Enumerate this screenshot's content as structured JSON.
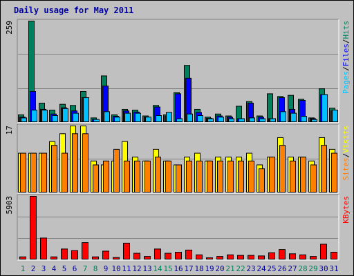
{
  "title": "Daily usage for May 2011",
  "colors": {
    "hits": "#00805c",
    "files": "#0000ff",
    "pages": "#00c0ff",
    "visits": "#ffff00",
    "sites": "#ff8000",
    "kbytes": "#ff0000",
    "weekend_day_label": "#00805c",
    "weekday_label": "#0000a0",
    "background": "#c0c0c0"
  },
  "chart_data": [
    {
      "type": "bar",
      "panel": "hits-files-pages",
      "axis_max_label": "259",
      "ylim": [
        0,
        259
      ],
      "side_label": [
        "Pages",
        "/",
        "Files",
        "/",
        "Hits"
      ],
      "categories": [
        "1",
        "2",
        "3",
        "4",
        "5",
        "6",
        "7",
        "8",
        "9",
        "10",
        "11",
        "12",
        "13",
        "14",
        "15",
        "16",
        "17",
        "18",
        "19",
        "20",
        "21",
        "22",
        "23",
        "24",
        "25",
        "26",
        "27",
        "28",
        "29",
        "30",
        "31"
      ],
      "series": [
        {
          "name": "Hits",
          "values": [
            18,
            259,
            48,
            30,
            45,
            42,
            78,
            10,
            118,
            18,
            32,
            30,
            15,
            42,
            18,
            75,
            145,
            32,
            12,
            20,
            15,
            40,
            52,
            15,
            72,
            65,
            68,
            58,
            10,
            85,
            35
          ]
        },
        {
          "name": "Files",
          "values": [
            12,
            78,
            32,
            20,
            36,
            28,
            62,
            6,
            92,
            14,
            28,
            25,
            12,
            38,
            15,
            72,
            112,
            24,
            9,
            15,
            12,
            8,
            48,
            12,
            8,
            62,
            32,
            55,
            8,
            70,
            28
          ]
        },
        {
          "name": "Pages",
          "values": [
            10,
            30,
            30,
            16,
            34,
            22,
            62,
            6,
            26,
            12,
            22,
            22,
            12,
            16,
            24,
            8,
            20,
            16,
            8,
            12,
            8,
            8,
            10,
            8,
            8,
            26,
            22,
            14,
            6,
            70,
            30
          ]
        }
      ]
    },
    {
      "type": "bar",
      "panel": "sites-visits",
      "axis_max_label": "17",
      "ylim": [
        0,
        17
      ],
      "side_label": [
        "Sites",
        "/",
        "Visits"
      ],
      "categories": [
        "1",
        "2",
        "3",
        "4",
        "5",
        "6",
        "7",
        "8",
        "9",
        "10",
        "11",
        "12",
        "13",
        "14",
        "15",
        "16",
        "17",
        "18",
        "19",
        "20",
        "21",
        "22",
        "23",
        "24",
        "25",
        "26",
        "27",
        "28",
        "29",
        "30",
        "31"
      ],
      "series": [
        {
          "name": "Visits",
          "values": [
            10,
            10,
            10,
            13,
            15,
            17,
            17,
            8,
            7,
            8,
            13,
            9,
            8,
            11,
            8,
            7,
            9,
            10,
            8,
            9,
            9,
            9,
            10,
            7,
            9,
            14,
            9,
            9,
            8,
            14,
            11
          ]
        },
        {
          "name": "Sites",
          "values": [
            10,
            10,
            10,
            12,
            10,
            15,
            15,
            7,
            8,
            11,
            8,
            8,
            8,
            9,
            8,
            7,
            8,
            8,
            8,
            8,
            8,
            8,
            8,
            6,
            9,
            12,
            8,
            9,
            7,
            12,
            10
          ]
        }
      ]
    },
    {
      "type": "bar",
      "panel": "kbytes",
      "axis_max_label": "5903",
      "ylim": [
        0,
        5903
      ],
      "side_label": [
        "KBytes"
      ],
      "categories": [
        "1",
        "2",
        "3",
        "4",
        "5",
        "6",
        "7",
        "8",
        "9",
        "10",
        "11",
        "12",
        "13",
        "14",
        "15",
        "16",
        "17",
        "18",
        "19",
        "20",
        "21",
        "22",
        "23",
        "24",
        "25",
        "26",
        "27",
        "28",
        "29",
        "30",
        "31"
      ],
      "series": [
        {
          "name": "KBytes",
          "values": [
            210,
            5903,
            1980,
            210,
            950,
            800,
            1550,
            210,
            750,
            150,
            1500,
            550,
            250,
            950,
            550,
            650,
            850,
            400,
            120,
            250,
            400,
            350,
            350,
            300,
            600,
            900,
            500,
            400,
            250,
            1400,
            650
          ]
        }
      ]
    }
  ],
  "x_axis": {
    "labels": [
      "1",
      "2",
      "3",
      "4",
      "5",
      "6",
      "7",
      "8",
      "9",
      "10",
      "11",
      "12",
      "13",
      "14",
      "15",
      "16",
      "17",
      "18",
      "19",
      "20",
      "21",
      "22",
      "23",
      "24",
      "25",
      "26",
      "27",
      "28",
      "29",
      "30",
      "31"
    ],
    "weekend_days": [
      "1",
      "7",
      "8",
      "14",
      "15",
      "21",
      "22",
      "28",
      "29"
    ]
  }
}
